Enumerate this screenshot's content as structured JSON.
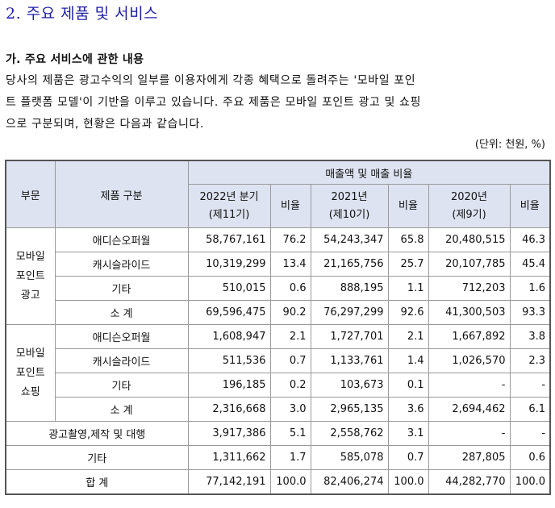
{
  "heading": "2. 주요 제품 및 서비스",
  "subheading": "가. 주요 서비스에 관한 내용",
  "paragraph": [
    "당사의 제품은 광고수익의 일부를 이용자에게 각종 혜택으로 돌려주는 '모바일 포인",
    "트 플랫폼 모델'이 기반을 이루고 있습니다. 주요 제품은 모바일 포인트 광고 및 쇼핑",
    "으로 구분되며, 현황은 다음과 같습니다."
  ],
  "unit_note": "(단위: 천원, %)",
  "table": {
    "headers": {
      "division": "부문",
      "product_type": "제품 구분",
      "sales_group": "매출액 및 매출 비율",
      "period1_line1": "2022년 분기",
      "period1_line2": "(제11기)",
      "period2_line1": "2021년",
      "period2_line2": "(제10기)",
      "period3_line1": "2020년",
      "period3_line2": "(제9기)",
      "ratio": "비율"
    },
    "groups": [
      {
        "name_lines": [
          "모바일",
          "포인트",
          "광고"
        ],
        "rows": [
          {
            "label": "애디슨오퍼월",
            "v1": "58,767,161",
            "r1": "76.2",
            "v2": "54,243,347",
            "r2": "65.8",
            "v3": "20,480,515",
            "r3": "46.3"
          },
          {
            "label": "캐시슬라이드",
            "v1": "10,319,299",
            "r1": "13.4",
            "v2": "21,165,756",
            "r2": "25.7",
            "v3": "20,107,785",
            "r3": "45.4"
          },
          {
            "label": "기타",
            "v1": "510,015",
            "r1": "0.6",
            "v2": "888,195",
            "r2": "1.1",
            "v3": "712,203",
            "r3": "1.6"
          },
          {
            "label": "소 계",
            "v1": "69,596,475",
            "r1": "90.2",
            "v2": "76,297,299",
            "r2": "92.6",
            "v3": "41,300,503",
            "r3": "93.3"
          }
        ]
      },
      {
        "name_lines": [
          "모바일",
          "포인트",
          "쇼핑"
        ],
        "rows": [
          {
            "label": "애디슨오퍼월",
            "v1": "1,608,947",
            "r1": "2.1",
            "v2": "1,727,701",
            "r2": "2.1",
            "v3": "1,667,892",
            "r3": "3.8"
          },
          {
            "label": "캐시슬라이드",
            "v1": "511,536",
            "r1": "0.7",
            "v2": "1,133,761",
            "r2": "1.4",
            "v3": "1,026,570",
            "r3": "2.3"
          },
          {
            "label": "기타",
            "v1": "196,185",
            "r1": "0.2",
            "v2": "103,673",
            "r2": "0.1",
            "v3": "-",
            "r3": "-"
          },
          {
            "label": "소 계",
            "v1": "2,316,668",
            "r1": "3.0",
            "v2": "2,965,135",
            "r2": "3.6",
            "v3": "2,694,462",
            "r3": "6.1"
          }
        ]
      }
    ],
    "extra_rows": [
      {
        "label": "광고촬영,제작 및 대행",
        "v1": "3,917,386",
        "r1": "5.1",
        "v2": "2,558,762",
        "r2": "3.1",
        "v3": "-",
        "r3": "-"
      },
      {
        "label": "기타",
        "v1": "1,311,662",
        "r1": "1.7",
        "v2": "585,078",
        "r2": "0.7",
        "v3": "287,805",
        "r3": "0.6"
      },
      {
        "label": "합 계",
        "v1": "77,142,191",
        "r1": "100.0",
        "v2": "82,406,274",
        "r2": "100.0",
        "v3": "44,282,770",
        "r3": "100.0"
      }
    ]
  }
}
